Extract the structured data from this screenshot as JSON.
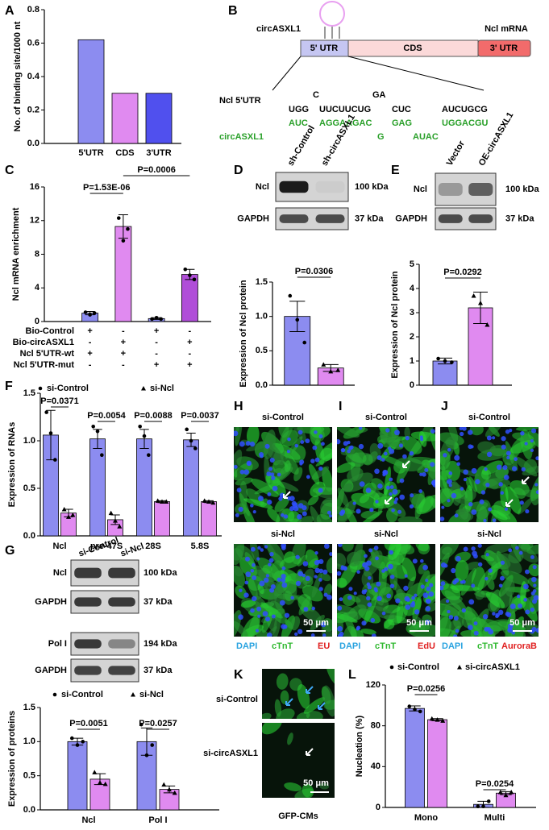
{
  "panel_labels": [
    "A",
    "B",
    "C",
    "D",
    "E",
    "F",
    "G",
    "H",
    "I",
    "J",
    "K",
    "L"
  ],
  "diagram": {
    "circle_label": "circASXL1",
    "mrna_label": "Ncl mRNA",
    "regions": [
      "5' UTR",
      "CDS",
      "3' UTR"
    ],
    "ncl_label": "Ncl 5'UTR",
    "circ_label": "circASXL1",
    "ncl_bulges": [
      "C",
      "GA"
    ],
    "ncl_paired": [
      "UGG",
      "UUCUUCUG",
      "CUC",
      "AUCUGCG"
    ],
    "circ_paired": [
      "AUC",
      "AGGAAGAC",
      "GAG",
      "UGGACGU"
    ],
    "circ_bulges": [
      "G",
      "AUAC"
    ]
  },
  "chart_data": [
    {
      "type": "bar",
      "y_label": "No. of binding site/1000 nt",
      "categories": [
        "5'UTR",
        "CDS",
        "3'UTR"
      ],
      "values": [
        0.62,
        0.3,
        0.3
      ],
      "colors": [
        "#8c8cf0",
        "#e08af0",
        "#5050ee"
      ],
      "ylim": [
        0,
        0.8
      ],
      "yticks": [
        {
          "value": 0,
          "label": "0.0"
        },
        0.2,
        0.4,
        0.6,
        0.8
      ]
    },
    {
      "type": "bar",
      "y_label": "Ncl mRNA enrichment",
      "values": [
        1.0,
        11.3,
        0.35,
        5.6
      ],
      "errors": [
        0.2,
        1.4,
        0.1,
        0.6
      ],
      "points": [
        [
          1.1,
          0.8,
          1.0
        ],
        [
          12.3,
          9.6,
          11.0
        ],
        [
          0.3,
          0.45,
          0.3
        ],
        [
          6.2,
          5.5,
          5.0
        ]
      ],
      "colors": [
        "#8c8cf0",
        "#e08af0",
        "#8c8cf0",
        "#b04ed8"
      ],
      "markers": [
        "circle",
        "circle",
        "circle",
        "circle"
      ],
      "ylim": [
        0,
        16
      ],
      "yticks": [
        0,
        4,
        8,
        12,
        16
      ],
      "p_values": [
        "P=1.53E-06",
        "P=0.0006"
      ],
      "table": [
        {
          "label": "Bio-Control",
          "cells": [
            "+",
            "-",
            "+",
            "-"
          ]
        },
        {
          "label": "Bio-circASXL1",
          "cells": [
            "-",
            "+",
            "-",
            "+"
          ]
        },
        {
          "label": "Ncl 5'UTR-wt",
          "cells": [
            "+",
            "+",
            "-",
            "-"
          ]
        },
        {
          "label": "Ncl 5'UTR-mut",
          "cells": [
            "-",
            "-",
            "+",
            "+"
          ]
        }
      ]
    },
    {
      "type": "bar",
      "y_label": "Expression of Ncl protein",
      "values": [
        1.0,
        0.25
      ],
      "errors": [
        0.22,
        0.05
      ],
      "points": [
        [
          1.3,
          0.95,
          0.62
        ],
        [
          0.3,
          0.2,
          0.22
        ]
      ],
      "colors": [
        "#8c8cf0",
        "#e08af0"
      ],
      "markers": [
        "circle",
        "triangle"
      ],
      "ylim": [
        0,
        1.5
      ],
      "yticks": [
        {
          "value": 0,
          "label": "0.0"
        },
        0.5,
        {
          "value": 1,
          "label": "1.0"
        },
        1.5
      ],
      "p_values": [
        "P=0.0306"
      ]
    },
    {
      "type": "bar",
      "y_label": "Expression of Ncl protein",
      "values": [
        1.0,
        3.2
      ],
      "errors": [
        0.12,
        0.65
      ],
      "points": [
        [
          1.1,
          1.0,
          0.95
        ],
        [
          3.7,
          3.4,
          2.5
        ]
      ],
      "colors": [
        "#8c8cf0",
        "#e08af0"
      ],
      "markers": [
        "circle",
        "triangle"
      ],
      "ylim": [
        0,
        5
      ],
      "yticks": [
        0,
        1,
        2,
        3,
        4,
        5
      ],
      "p_values": [
        "P=0.0292"
      ]
    },
    {
      "type": "bar",
      "y_label": "Expression of  RNAs",
      "categories": [
        "Ncl",
        "pre-47S",
        "28S",
        "5.8S"
      ],
      "series": [
        {
          "name": "si-Control",
          "color": "#8c8cf0",
          "marker": "circle",
          "values": [
            1.06,
            1.02,
            1.02,
            1.01
          ],
          "errors": [
            0.26,
            0.1,
            0.1,
            0.07
          ],
          "points": [
            [
              1.3,
              1.08,
              0.8
            ],
            [
              1.15,
              1.1,
              0.85
            ],
            [
              1.15,
              1.05,
              0.85
            ],
            [
              1.12,
              1.0,
              0.92
            ]
          ]
        },
        {
          "name": "si-Ncl",
          "color": "#e08af0",
          "marker": "triangle",
          "values": [
            0.24,
            0.17,
            0.36,
            0.36
          ],
          "errors": [
            0.04,
            0.05,
            0.01,
            0.01
          ],
          "points": [
            [
              0.28,
              0.2,
              0.22
            ],
            [
              0.24,
              0.16,
              0.1
            ],
            [
              0.37,
              0.36,
              0.36
            ],
            [
              0.37,
              0.36,
              0.35
            ]
          ]
        }
      ],
      "ylim": [
        0,
        1.5
      ],
      "yticks": [
        {
          "value": 0,
          "label": "0.0"
        },
        0.5,
        {
          "value": 1,
          "label": "1.0"
        },
        1.5
      ],
      "p_values": [
        "P=0.0371",
        "P=0.0054",
        "P=0.0088",
        "P=0.0037"
      ]
    },
    {
      "type": "bar",
      "y_label": "Expression of proteins",
      "categories": [
        "Ncl",
        "Pol I"
      ],
      "series": [
        {
          "name": "si-Control",
          "color": "#8c8cf0",
          "marker": "circle",
          "values": [
            1.0,
            1.0
          ],
          "errors": [
            0.05,
            0.2
          ],
          "points": [
            [
              1.05,
              0.95,
              1.0
            ],
            [
              1.25,
              0.8,
              0.95
            ]
          ]
        },
        {
          "name": "si-Ncl",
          "color": "#e08af0",
          "marker": "triangle",
          "values": [
            0.45,
            0.3
          ],
          "errors": [
            0.08,
            0.05
          ],
          "points": [
            [
              0.55,
              0.4,
              0.38
            ],
            [
              0.37,
              0.3,
              0.25
            ]
          ]
        }
      ],
      "ylim": [
        0,
        1.5
      ],
      "yticks": [
        {
          "value": 0,
          "label": "0.0"
        },
        0.5,
        {
          "value": 1,
          "label": "1.0"
        },
        1.5
      ],
      "p_values": [
        "P=0.0051",
        "P=0.0257"
      ]
    },
    {
      "type": "bar",
      "y_label": "Nucleation (%)",
      "categories": [
        "Mono",
        "Multi"
      ],
      "series": [
        {
          "name": "si-Control",
          "color": "#8c8cf0",
          "marker": "circle",
          "values": [
            97,
            3
          ],
          "errors": [
            2.5,
            3
          ],
          "points": [
            [
              99,
              96,
              94
            ],
            [
              1,
              1,
              6
            ]
          ]
        },
        {
          "name": "si-circASXL1",
          "color": "#e08af0",
          "marker": "triangle",
          "values": [
            86,
            14
          ],
          "errors": [
            1,
            1.5
          ],
          "points": [
            [
              87,
              86,
              85
            ],
            [
              15,
              12,
              15
            ]
          ]
        }
      ],
      "ylim": [
        0,
        120
      ],
      "yticks": [
        0,
        40,
        80,
        120
      ],
      "p_values": [
        "P=0.0256",
        "P=0.0254"
      ]
    }
  ],
  "blots": [
    {
      "lanes": [
        "sh-Control",
        "sh-circASXL1"
      ],
      "rows": [
        {
          "label": "Ncl",
          "size": "100 kDa"
        },
        {
          "label": "GAPDH",
          "size": "37 kDa"
        }
      ]
    },
    {
      "lanes": [
        "Vector",
        "OE-circASXL1"
      ],
      "rows": [
        {
          "label": "Ncl",
          "size": "100 kDa"
        },
        {
          "label": "GAPDH",
          "size": "37 kDa"
        }
      ]
    },
    {
      "lanes": [
        "si-Control",
        "si-Ncl"
      ],
      "rows": [
        {
          "label": "Ncl",
          "size": "100 kDa"
        },
        {
          "label": "GAPDH",
          "size": "37 kDa"
        },
        {
          "label": "Pol I",
          "size": "194 kDa"
        },
        {
          "label": "GAPDH",
          "size": "37 kDa"
        }
      ]
    }
  ],
  "micrographs": [
    {
      "top_label": "si-Control",
      "bottom_label": "si-Ncl",
      "scale": "50 μm",
      "stains": [
        {
          "text": "DAPI",
          "color": "#29a3e0"
        },
        {
          "text": "cTnT",
          "color": "#2eb82e"
        },
        {
          "text": "EU",
          "color": "#e02020"
        }
      ]
    },
    {
      "top_label": "si-Control",
      "bottom_label": "si-Ncl",
      "scale": "50 μm",
      "stains": [
        {
          "text": "DAPI",
          "color": "#29a3e0"
        },
        {
          "text": "cTnT",
          "color": "#2eb82e"
        },
        {
          "text": "EdU",
          "color": "#e02020"
        }
      ]
    },
    {
      "top_label": "si-Control",
      "bottom_label": "si-Ncl",
      "scale": "50 μm",
      "stains": [
        {
          "text": "DAPI",
          "color": "#29a3e0"
        },
        {
          "text": "cTnT",
          "color": "#2eb82e"
        },
        {
          "text": "AuroraB",
          "color": "#e02020"
        }
      ]
    }
  ],
  "micrograph_k": {
    "labels": [
      "si-Control",
      "si-circASXL1"
    ],
    "scale": "50 μm",
    "caption": "GFP-CMs"
  }
}
